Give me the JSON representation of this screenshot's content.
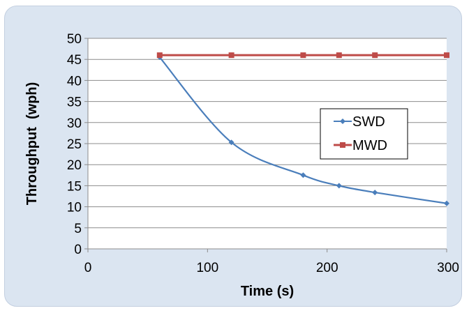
{
  "chart_data": {
    "type": "line",
    "title": "",
    "xlabel": "Time (s)",
    "ylabel": "Throughput  (wph)",
    "xlim": [
      0,
      300
    ],
    "ylim": [
      0,
      50
    ],
    "xticks": [
      0,
      100,
      200,
      300
    ],
    "yticks": [
      0,
      5,
      10,
      15,
      20,
      25,
      30,
      35,
      40,
      45,
      50
    ],
    "grid": "horizontal",
    "legend_position": "right",
    "series": [
      {
        "name": "SWD",
        "color": "#4a7ebb",
        "marker": "diamond",
        "x": [
          60,
          120,
          180,
          210,
          240,
          300
        ],
        "y": [
          45.5,
          25.3,
          17.5,
          15.0,
          13.4,
          10.8
        ]
      },
      {
        "name": "MWD",
        "color": "#be4b48",
        "marker": "square",
        "x": [
          60,
          120,
          180,
          210,
          240,
          300
        ],
        "y": [
          46,
          46,
          46,
          46,
          46,
          46
        ]
      }
    ]
  }
}
